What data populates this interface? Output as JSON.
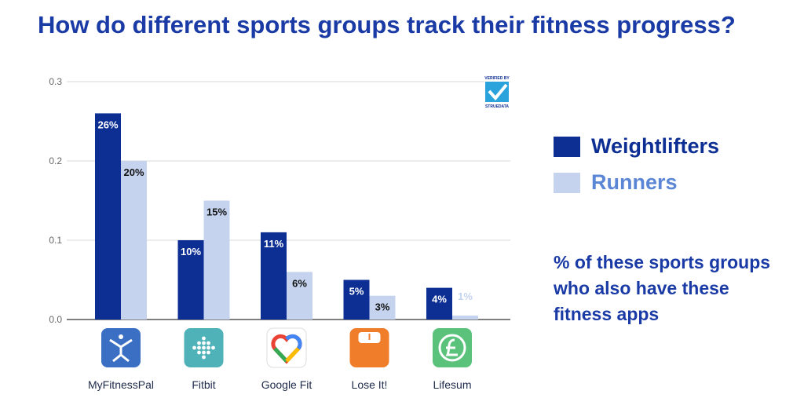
{
  "title": "How do different sports groups track their fitness progress?",
  "note": "% of these sports groups who also have these fitness apps",
  "badge": {
    "top": "VERIFIED BY",
    "bottom": "STRUEDATA"
  },
  "colors": {
    "weightlifters": "#0d2f94",
    "runners": "#c5d3ef",
    "title": "#1a3aa6"
  },
  "chart_data": {
    "type": "bar",
    "categories": [
      "MyFitnessPal",
      "Fitbit",
      "Google Fit",
      "Lose It!",
      "Lifesum"
    ],
    "icons": [
      "myfitnesspal-icon",
      "fitbit-icon",
      "google-fit-icon",
      "lose-it-icon",
      "lifesum-icon"
    ],
    "series": [
      {
        "name": "Weightlifters",
        "values": [
          0.26,
          0.1,
          0.11,
          0.05,
          0.04
        ],
        "labels": [
          "26%",
          "10%",
          "11%",
          "5%",
          "4%"
        ]
      },
      {
        "name": "Runners",
        "values": [
          0.2,
          0.15,
          0.06,
          0.03,
          0.005
        ],
        "labels": [
          "20%",
          "15%",
          "6%",
          "3%",
          "1%"
        ]
      }
    ],
    "yticks": [
      "0.0",
      "0.1",
      "0.2",
      "0.3"
    ],
    "ylim": [
      0,
      0.3
    ],
    "grid": true,
    "legend": "right"
  }
}
